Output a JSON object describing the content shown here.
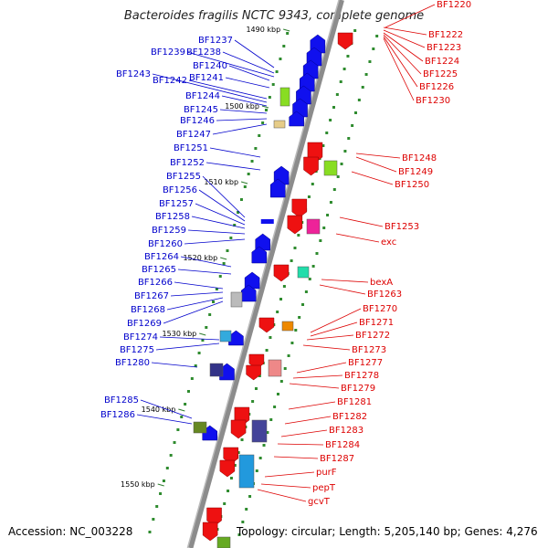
{
  "title": "Bacteroides fragilis NCTC 9343, complete genome",
  "accession": "Accession: NC_003228",
  "summary": "Topology: circular; Length: 5,205,140 bp; Genes: 4,276",
  "colors": {
    "left_labels": "#0000cc",
    "right_labels": "#dd0000",
    "backbone": "#8c8c8c",
    "dots": "#2e8b2e"
  },
  "scale_ticks": [
    "1490 kbp",
    "1500 kbp",
    "1510 kbp",
    "1520 kbp",
    "1530 kbp",
    "1540 kbp",
    "1550 kbp"
  ],
  "left_genes": [
    "BF1237",
    "BF1238",
    "BF1239",
    "BF1240",
    "BF1241",
    "BF1242",
    "BF1243",
    "BF1244",
    "BF1245",
    "BF1246",
    "BF1247",
    "BF1251",
    "BF1252",
    "BF1255",
    "BF1256",
    "BF1257",
    "BF1258",
    "BF1259",
    "BF1260",
    "BF1264",
    "BF1265",
    "BF1266",
    "BF1267",
    "BF1268",
    "BF1269",
    "BF1274",
    "BF1275",
    "BF1280",
    "BF1285",
    "BF1286"
  ],
  "right_genes": [
    "BF1220",
    "BF1222",
    "BF1223",
    "BF1224",
    "BF1225",
    "BF1226",
    "BF1230",
    "BF1248",
    "BF1249",
    "BF1250",
    "BF1253",
    "exc",
    "bexA",
    "BF1263",
    "BF1270",
    "BF1271",
    "BF1272",
    "BF1273",
    "BF1277",
    "BF1278",
    "BF1279",
    "BF1281",
    "BF1282",
    "BF1283",
    "BF1284",
    "BF1287",
    "purF",
    "pepT",
    "gcvT"
  ]
}
